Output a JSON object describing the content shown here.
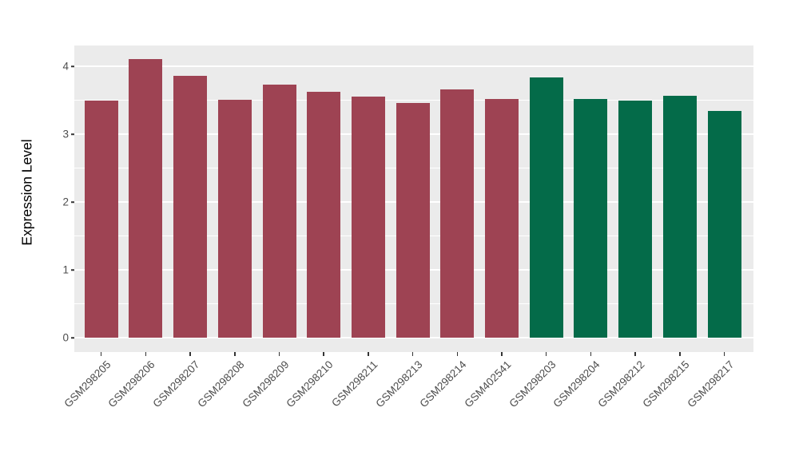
{
  "chart_data": {
    "type": "bar",
    "title": "",
    "xlabel": "",
    "ylabel": "Expression Level",
    "ylim": [
      0,
      4.31
    ],
    "yticks": [
      0,
      1,
      2,
      3,
      4
    ],
    "yticks_minor": [
      0.5,
      1.5,
      2.5,
      3.5
    ],
    "grid": "major and minor horizontal white gridlines on grey panel",
    "legend_position": "none",
    "panel_bg": "#EBEBEB",
    "gridline_color": "#FFFFFF",
    "axis_text_color": "#4D4D4D",
    "tick_mark_color": "#333333",
    "categories": [
      "GSM298205",
      "GSM298206",
      "GSM298207",
      "GSM298208",
      "GSM298209",
      "GSM298210",
      "GSM298211",
      "GSM298213",
      "GSM298214",
      "GSM402541",
      "GSM298203",
      "GSM298204",
      "GSM298212",
      "GSM298215",
      "GSM298217"
    ],
    "values": [
      3.5,
      4.11,
      3.86,
      3.51,
      3.73,
      3.62,
      3.55,
      3.46,
      3.66,
      3.52,
      3.83,
      3.52,
      3.5,
      3.57,
      3.34
    ],
    "groups": [
      "A",
      "A",
      "A",
      "A",
      "A",
      "A",
      "A",
      "A",
      "A",
      "A",
      "B",
      "B",
      "B",
      "B",
      "B"
    ],
    "group_colors": {
      "A": "#9E4353",
      "B": "#046B49"
    }
  }
}
